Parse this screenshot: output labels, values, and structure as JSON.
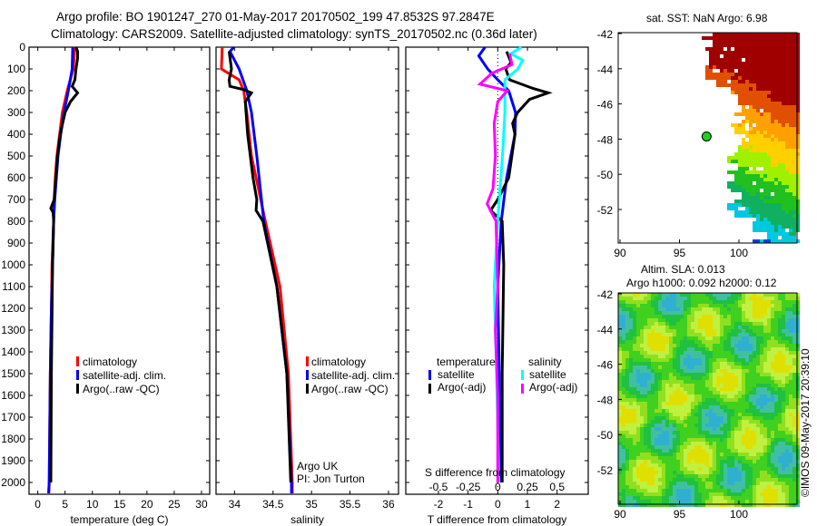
{
  "header": {
    "title_line1": "Argo profile: BO 1901247_270 01-May-2017 20170502_199 47.8532S 97.2847E",
    "title_line2": "Climatology: CARS2009. Satellite-adjusted climatology: synTS_20170502.nc (0.36d later)"
  },
  "colors": {
    "climatology": "#ff0000",
    "satellite": "#0000ff",
    "argo": "#000000",
    "sal_satellite": "#00ffff",
    "sal_argo": "#ff00ff"
  },
  "chart_data": [
    {
      "type": "line",
      "name": "temperature-profile",
      "xlabel": "temperature (deg C)",
      "ylabel": "",
      "xlim": [
        -1.6,
        31.5
      ],
      "ylim": [
        2050,
        0
      ],
      "xticks": [
        "0",
        "5",
        "10",
        "15",
        "20",
        "25",
        "30"
      ],
      "yticks": [
        "0",
        "100",
        "200",
        "300",
        "400",
        "500",
        "600",
        "700",
        "800",
        "900",
        "1000",
        "1100",
        "1200",
        "1300",
        "1400",
        "1500",
        "1600",
        "1700",
        "1800",
        "1900",
        "2000"
      ],
      "legend": [
        "climatology",
        "satellite-adj. clim.",
        "Argo(..raw -QC)"
      ],
      "series": [
        {
          "name": "climatology",
          "color": "#ff0000",
          "depth": [
            0,
            100,
            200,
            300,
            400,
            500,
            600,
            700,
            800,
            1000,
            1200,
            1500,
            2000,
            2050
          ],
          "values": [
            6.8,
            6.5,
            5.4,
            4.5,
            4.0,
            3.5,
            3.2,
            3.0,
            2.9,
            2.6,
            2.5,
            2.3,
            2.1,
            2.0
          ]
        },
        {
          "name": "satellite-adj. clim.",
          "color": "#0000ff",
          "depth": [
            0,
            100,
            200,
            300,
            400,
            500,
            600,
            700,
            800,
            1000,
            1200,
            1500,
            2000,
            2050
          ],
          "values": [
            6.4,
            6.3,
            5.6,
            4.8,
            4.2,
            3.7,
            3.4,
            3.1,
            2.9,
            2.7,
            2.5,
            2.3,
            2.1,
            2.0
          ]
        },
        {
          "name": "Argo(..raw -QC)",
          "color": "#000000",
          "depth": [
            0,
            20,
            50,
            100,
            150,
            180,
            210,
            250,
            300,
            400,
            500,
            600,
            700,
            740,
            760,
            800,
            1000,
            1500,
            2000
          ],
          "values": [
            7.0,
            7.3,
            7.3,
            7.0,
            6.8,
            6.3,
            7.3,
            6.0,
            5.0,
            4.1,
            3.6,
            3.3,
            3.0,
            2.4,
            2.8,
            2.9,
            2.7,
            2.5,
            2.4
          ]
        }
      ]
    },
    {
      "type": "line",
      "name": "salinity-profile",
      "xlabel": "salinity",
      "xlim": [
        33.76,
        36.13
      ],
      "ylim": [
        2050,
        0
      ],
      "xticks": [
        "34",
        "34.5",
        "35",
        "35.5",
        "36"
      ],
      "legend": [
        "climatology",
        "satellite-adj. clim.",
        "Argo(..raw -QC)"
      ],
      "annotations": [
        "Argo UK",
        "PI: Jon Turton"
      ],
      "series": [
        {
          "name": "climatology",
          "color": "#ff0000",
          "depth": [
            0,
            100,
            150,
            200,
            300,
            500,
            800,
            1100,
            1500,
            2000,
            2050
          ],
          "values": [
            33.84,
            33.83,
            34.06,
            34.12,
            34.16,
            34.22,
            34.4,
            34.59,
            34.7,
            34.75,
            34.75
          ]
        },
        {
          "name": "satellite-adj. clim.",
          "color": "#0000ff",
          "depth": [
            0,
            20,
            60,
            100,
            200,
            300,
            500,
            800,
            1100,
            1500,
            2000,
            2050
          ],
          "values": [
            33.99,
            33.94,
            34.0,
            34.06,
            34.16,
            34.22,
            34.29,
            34.38,
            34.55,
            34.68,
            34.74,
            34.74
          ]
        },
        {
          "name": "Argo(..raw -QC)",
          "color": "#000000",
          "depth": [
            20,
            100,
            150,
            180,
            195,
            210,
            250,
            400,
            600,
            700,
            750,
            800,
            1100,
            1500,
            2000
          ],
          "values": [
            33.93,
            33.96,
            33.93,
            33.94,
            34.12,
            34.22,
            34.14,
            34.17,
            34.24,
            34.29,
            34.28,
            34.37,
            34.55,
            34.68,
            34.73
          ]
        }
      ]
    },
    {
      "type": "line",
      "name": "difference-profile",
      "xlabel": "T difference from climatology",
      "x2label": "S difference from climatology",
      "xlim": [
        -3.1,
        3.05
      ],
      "ylim": [
        2050,
        0
      ],
      "xticks": [
        "-2",
        "-1",
        "0",
        "1",
        "2"
      ],
      "x2ticks": [
        "-0.5",
        "-0.25",
        "0",
        "0.25",
        "0.5"
      ],
      "legend_headers": [
        "temperature",
        "salinity"
      ],
      "legend": [
        "satellite",
        "Argo(-adj)",
        "satellite",
        "Argo(-adj)"
      ],
      "series": [
        {
          "name": "temperature satellite",
          "color": "#0000ff",
          "units": "T",
          "depth": [
            0,
            40,
            100,
            150,
            200,
            300,
            400,
            600,
            800,
            1100,
            1500,
            2000
          ],
          "values": [
            -0.43,
            -0.64,
            -0.34,
            0,
            0.37,
            0.6,
            0.58,
            0.3,
            0.12,
            0.0,
            0.05,
            0.1
          ]
        },
        {
          "name": "temperature Argo(-adj)",
          "color": "#000000",
          "units": "T",
          "depth": [
            20,
            70,
            100,
            150,
            190,
            210,
            240,
            300,
            350,
            400,
            600,
            700,
            750,
            800,
            1000,
            1500,
            2000
          ],
          "values": [
            0.3,
            0.45,
            0.27,
            0.4,
            1.2,
            1.7,
            1.07,
            0.67,
            0.5,
            0.58,
            0.37,
            0.0,
            -0.24,
            0.15,
            0.2,
            0.15,
            0.15
          ]
        },
        {
          "name": "salinity satellite",
          "color": "#00ffff",
          "units": "S",
          "depth": [
            0,
            30,
            60,
            100,
            150,
            200,
            300,
            500,
            800,
            1100,
            1500,
            2000
          ],
          "values": [
            0.2,
            0.11,
            0.21,
            0.17,
            0.06,
            0.06,
            0.06,
            0.04,
            0.0,
            -0.03,
            -0.01,
            0.01
          ]
        },
        {
          "name": "salinity Argo(-adj)",
          "color": "#ff00ff",
          "units": "S",
          "depth": [
            30,
            80,
            120,
            170,
            200,
            250,
            350,
            500,
            650,
            720,
            800,
            1100,
            1300,
            1600,
            2000
          ],
          "values": [
            0.1,
            0.12,
            -0.05,
            -0.15,
            0.08,
            0.0,
            -0.03,
            -0.02,
            -0.04,
            -0.09,
            -0.015,
            0.0,
            -0.02,
            0.0,
            0.0
          ]
        }
      ]
    }
  ],
  "sst_map": {
    "title": "sat. SST: NaN Argo: 6.98",
    "yticks": [
      "-42",
      "-44",
      "-46",
      "-48",
      "-50",
      "-52"
    ],
    "xticks": [
      "90",
      "95",
      "100"
    ],
    "argo_position": {
      "lon": 97.28,
      "lat": -47.85
    }
  },
  "sla_map": {
    "title_line1": "Altim. SLA: 0.013",
    "title_line2": "Argo h1000: 0.092 h2000: 0.12",
    "yticks": [
      "-42",
      "-44",
      "-46",
      "-48",
      "-50",
      "-52"
    ],
    "xticks": [
      "90",
      "95",
      "100"
    ]
  },
  "credit": "©IMOS 09-May-2017 20:39:10"
}
